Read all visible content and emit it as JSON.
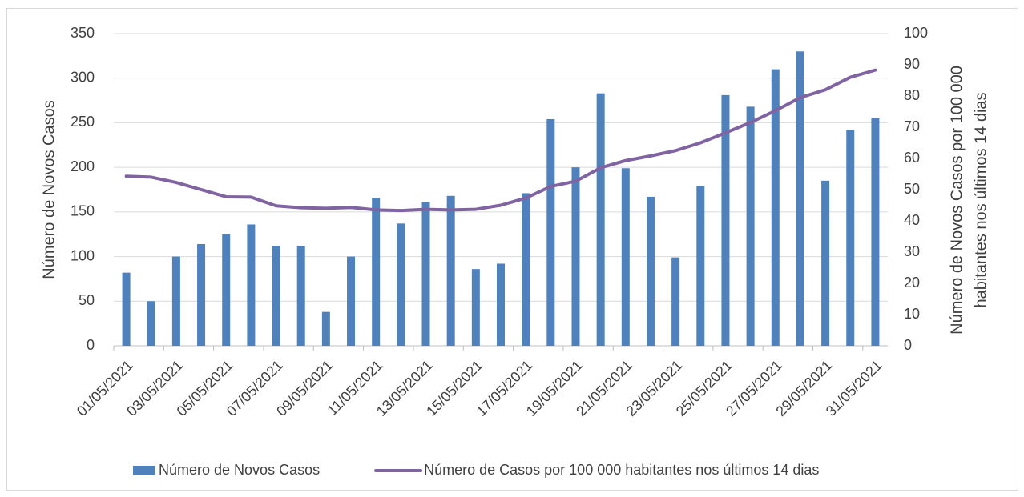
{
  "chart_data": {
    "type": "bar-line",
    "categories": [
      "01/05/2021",
      null,
      "03/05/2021",
      null,
      "05/05/2021",
      null,
      "07/05/2021",
      null,
      "09/05/2021",
      null,
      "11/05/2021",
      null,
      "13/05/2021",
      null,
      "15/05/2021",
      null,
      "17/05/2021",
      null,
      "19/05/2021",
      null,
      "21/05/2021",
      null,
      "23/05/2021",
      null,
      "25/05/2021",
      null,
      "27/05/2021",
      null,
      "29/05/2021",
      null,
      "31/05/2021"
    ],
    "series": [
      {
        "name": "Número de Novos Casos",
        "type": "bar",
        "color": "#4f81bd",
        "values": [
          82,
          50,
          100,
          114,
          125,
          136,
          112,
          112,
          38,
          100,
          166,
          137,
          161,
          168,
          86,
          92,
          171,
          254,
          200,
          283,
          199,
          167,
          99,
          179,
          281,
          268,
          310,
          330,
          185,
          242,
          255
        ]
      },
      {
        "name": "Número de Casos por 100 000 habitantes nos últimos 14 dias",
        "type": "line",
        "axis": "y2",
        "color": "#8064a2",
        "values": [
          54.3,
          54,
          52.3,
          50,
          47.7,
          47.6,
          44.8,
          44.2,
          44,
          44.3,
          43.5,
          43.3,
          43.7,
          43.5,
          43.7,
          45,
          47.3,
          51,
          52.7,
          57,
          59.3,
          60.8,
          62.5,
          65,
          68.2,
          71.5,
          75.3,
          79.5,
          82,
          86,
          88.3
        ]
      }
    ],
    "ylabel": "Número de Novos Casos",
    "y2label": [
      "Número de Novos Casos por 100 000",
      "habitantes nos últimos 14 dias"
    ],
    "ylim": [
      0,
      350
    ],
    "yticks": [
      0,
      50,
      100,
      150,
      200,
      250,
      300,
      350
    ],
    "y2lim": [
      0,
      100
    ],
    "y2ticks": [
      0,
      10,
      20,
      30,
      40,
      50,
      60,
      70,
      80,
      90,
      100
    ],
    "grid": true,
    "legend": "bottom"
  }
}
